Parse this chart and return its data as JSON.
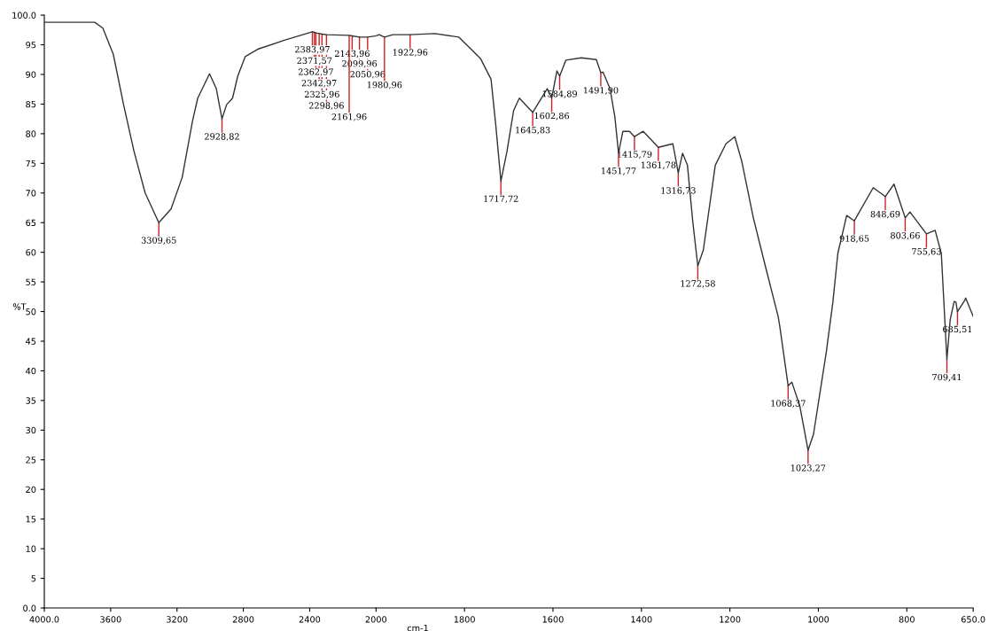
{
  "chart_data": [
    {
      "type": "line",
      "ylabel": "%T",
      "xlim": [
        4000,
        2000
      ],
      "ylim": [
        0,
        100
      ],
      "xticks": [
        {
          "value": 4000,
          "label": "4000.0"
        },
        3600,
        3200,
        2800,
        2400
      ],
      "yticks": [
        {
          "value": 0,
          "label": "0.0"
        },
        5,
        10,
        15,
        20,
        25,
        30,
        35,
        40,
        45,
        50,
        55,
        60,
        65,
        70,
        75,
        80,
        85,
        90,
        95,
        {
          "value": 100,
          "label": "100.0"
        }
      ],
      "grid": false,
      "marker": "none",
      "line_style": "solid",
      "series": [
        {
          "color": "#333333",
          "x": [
            4000,
            3696,
            3647,
            3584,
            3522,
            3459,
            3392,
            3309.65,
            3236,
            3169,
            3106,
            3075,
            3004,
            2963,
            2928.82,
            2901,
            2865,
            2834,
            2789,
            2709,
            2548,
            2383.97,
            2371.57,
            2362.97,
            2342.97,
            2325.96,
            2298.96,
            2161.96,
            2143.96,
            2099.96,
            2050.96,
            2000
          ],
          "values": [
            98.8,
            98.8,
            97.8,
            93.4,
            84.9,
            77.0,
            70.0,
            65.0,
            67.3,
            72.6,
            82.2,
            86.0,
            90.1,
            87.6,
            82.5,
            84.9,
            86.0,
            89.7,
            93.0,
            94.3,
            95.8,
            97.2,
            97.1,
            97.0,
            96.9,
            96.8,
            96.7,
            96.6,
            96.5,
            96.3,
            96.3,
            96.5
          ]
        }
      ],
      "annotations": [
        {
          "text": "3309,65",
          "x": 3309.65,
          "y": 65.0
        },
        {
          "text": "2928,82",
          "x": 2928.82,
          "y": 82.5
        },
        {
          "text": "2383,97",
          "x": 2383.97,
          "y": 97.2
        },
        {
          "text": "2371,57",
          "x": 2371.57,
          "y": 97.1
        },
        {
          "text": "2362,97",
          "x": 2362.97,
          "y": 97.0
        },
        {
          "text": "2342,97",
          "x": 2342.97,
          "y": 96.9
        },
        {
          "text": "2325,96",
          "x": 2325.96,
          "y": 96.8
        },
        {
          "text": "2298,96",
          "x": 2298.96,
          "y": 96.7
        },
        {
          "text": "2161,96",
          "x": 2161.96,
          "y": 96.6
        },
        {
          "text": "2143,96",
          "x": 2143.96,
          "y": 96.5
        },
        {
          "text": "2099,96",
          "x": 2099.96,
          "y": 96.3
        },
        {
          "text": "2050,96",
          "x": 2050.96,
          "y": 96.3
        }
      ]
    },
    {
      "type": "line",
      "xlabel": "cm-1",
      "tick_labels": "x",
      "xlim": [
        2000,
        650
      ],
      "ylim": [
        0,
        100
      ],
      "xticks": [
        2000,
        1800,
        1600,
        1400,
        1200,
        1000,
        800,
        {
          "value": 650,
          "label": "650.0"
        }
      ],
      "grid": false,
      "marker": "none",
      "line_style": "solid",
      "series": [
        {
          "color": "#333333",
          "x": [
            2000,
            1993,
            1980.96,
            1962,
            1922.96,
            1867,
            1813,
            1764,
            1740,
            1729,
            1717.72,
            1704,
            1689,
            1676,
            1645.83,
            1613,
            1602.86,
            1591,
            1584.89,
            1571,
            1536,
            1502,
            1491.9,
            1487,
            1471,
            1460,
            1451.77,
            1442,
            1427,
            1415.79,
            1396,
            1361.78,
            1329,
            1316.73,
            1307,
            1296,
            1284,
            1272.58,
            1260,
            1233,
            1209,
            1189,
            1173,
            1147,
            1122,
            1091,
            1087,
            1068.37,
            1060,
            1042,
            1023.27,
            1011,
            982,
            967,
            956,
            936,
            918.65,
            876,
            848.69,
            829,
            803.66,
            793,
            755.63,
            736,
            722,
            709.41,
            702,
            693,
            689,
            685.51,
            669,
            667,
            650
          ],
          "values": [
            96.5,
            96.7,
            96.3,
            96.7,
            96.7,
            96.9,
            96.3,
            92.7,
            89.2,
            81.2,
            72.0,
            77.0,
            83.9,
            86.0,
            83.6,
            87.6,
            86.0,
            90.6,
            89.7,
            92.4,
            92.8,
            92.5,
            90.3,
            90.4,
            87.6,
            82.8,
            76.7,
            80.4,
            80.4,
            79.5,
            80.4,
            77.7,
            78.3,
            73.4,
            76.7,
            74.7,
            65.2,
            57.7,
            60.4,
            74.7,
            78.3,
            79.5,
            75.3,
            65.8,
            58.3,
            49.2,
            47.4,
            37.5,
            38.1,
            34.1,
            26.6,
            29.3,
            43.2,
            51.7,
            59.8,
            66.2,
            65.3,
            70.9,
            69.4,
            71.5,
            65.8,
            66.8,
            63.1,
            63.7,
            59.8,
            41.9,
            48.6,
            51.7,
            51.6,
            50.0,
            51.9,
            52.3,
            49.2
          ]
        }
      ],
      "annotations": [
        {
          "text": "1980,96",
          "x": 1980.96,
          "y": 96.3
        },
        {
          "text": "1922,96",
          "x": 1922.96,
          "y": 96.7
        },
        {
          "text": "1717,72",
          "x": 1717.72,
          "y": 72.0
        },
        {
          "text": "1645,83",
          "x": 1645.83,
          "y": 83.6
        },
        {
          "text": "1602,86",
          "x": 1602.86,
          "y": 86.0
        },
        {
          "text": "1584,89",
          "x": 1584.89,
          "y": 89.7
        },
        {
          "text": "1491,90",
          "x": 1491.9,
          "y": 90.3
        },
        {
          "text": "1451,77",
          "x": 1451.77,
          "y": 76.7
        },
        {
          "text": "1415,79",
          "x": 1415.79,
          "y": 79.5
        },
        {
          "text": "1361,78",
          "x": 1361.78,
          "y": 77.7
        },
        {
          "text": "1316,73",
          "x": 1316.73,
          "y": 73.4
        },
        {
          "text": "1272,58",
          "x": 1272.58,
          "y": 57.7
        },
        {
          "text": "1068,37",
          "x": 1068.37,
          "y": 37.5
        },
        {
          "text": "1023,27",
          "x": 1023.27,
          "y": 26.6
        },
        {
          "text": "918,65",
          "x": 918.65,
          "y": 65.3
        },
        {
          "text": "848,69",
          "x": 848.69,
          "y": 69.4
        },
        {
          "text": "803,66",
          "x": 803.66,
          "y": 65.8
        },
        {
          "text": "755,63",
          "x": 755.63,
          "y": 63.1
        },
        {
          "text": "709,41",
          "x": 709.41,
          "y": 41.9
        },
        {
          "text": "685,51",
          "x": 685.51,
          "y": 50.0
        }
      ]
    }
  ]
}
